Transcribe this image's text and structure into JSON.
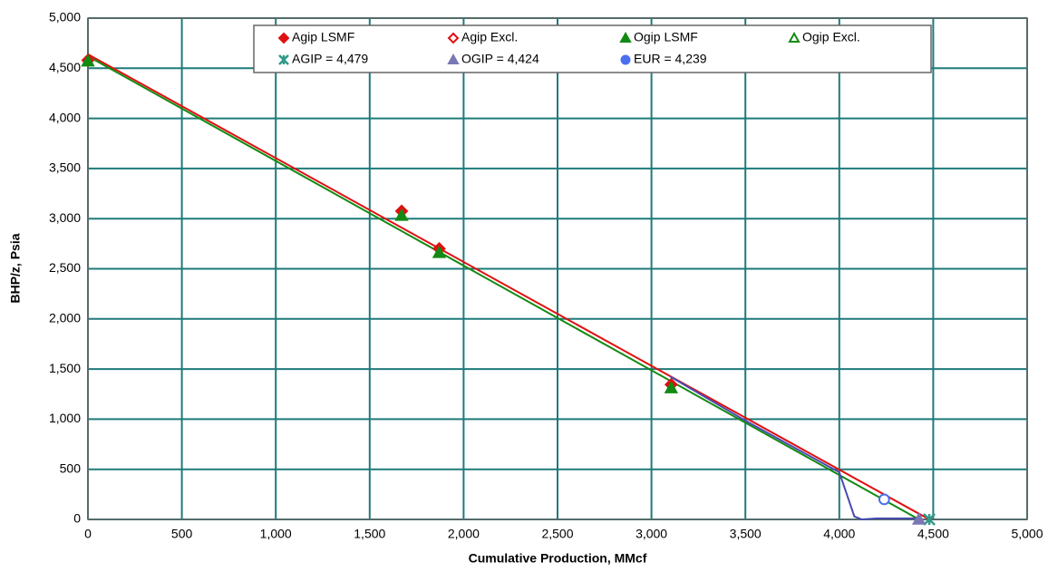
{
  "chart_data": {
    "type": "scatter",
    "x_label": "Cumulative Production, MMcf",
    "y_label": "BHP/z, Psia",
    "xlim": [
      0,
      5000
    ],
    "ylim": [
      0,
      5000
    ],
    "xticks": [
      0,
      500,
      {
        "value": 1000,
        "label": "1,000"
      },
      {
        "value": 1500,
        "label": "1,500"
      },
      {
        "value": 2000,
        "label": "2,000"
      },
      {
        "value": 2500,
        "label": "2,500"
      },
      {
        "value": 3000,
        "label": "3,000"
      },
      {
        "value": 3500,
        "label": "3,500"
      },
      {
        "value": 4000,
        "label": "4,000"
      },
      {
        "value": 4500,
        "label": "4,500"
      },
      {
        "value": 5000,
        "label": "5,000"
      }
    ],
    "yticks": [
      0,
      500,
      {
        "value": 1000,
        "label": "1,000"
      },
      {
        "value": 1500,
        "label": "1,500"
      },
      {
        "value": 2000,
        "label": "2,000"
      },
      {
        "value": 2500,
        "label": "2,500"
      },
      {
        "value": 3000,
        "label": "3,000"
      },
      {
        "value": 3500,
        "label": "3,500"
      },
      {
        "value": 4000,
        "label": "4,000"
      },
      {
        "value": 4500,
        "label": "4,500"
      },
      {
        "value": 5000,
        "label": "5,000"
      }
    ],
    "grid": true,
    "grid_color": "#1f7a7a",
    "legend": "top",
    "series": [
      {
        "name": "Agip LSMF",
        "color": "#e01010",
        "marker": "diamond",
        "x": [
          0,
          1670,
          1870,
          3105
        ],
        "values": [
          4580,
          3075,
          2700,
          1345
        ]
      },
      {
        "name": "Agip Excl.",
        "color": "#e01010",
        "marker": "diamond-open",
        "x": [],
        "values": []
      },
      {
        "name": "Ogip LSMF",
        "color": "#138a13",
        "marker": "triangle",
        "x": [
          0,
          1670,
          1870,
          3105
        ],
        "values": [
          4570,
          3030,
          2660,
          1310
        ]
      },
      {
        "name": "Ogip Excl.",
        "color": "#138a13",
        "marker": "triangle-open",
        "x": [],
        "values": []
      },
      {
        "name": "AGIP = 4,479",
        "color": "#2f9a8a",
        "marker": "asterisk",
        "x": [
          4479
        ],
        "values": [
          0
        ]
      },
      {
        "name": "OGIP = 4,424",
        "color": "#7a78b4",
        "marker": "triangle",
        "x": [
          4424
        ],
        "values": [
          0
        ]
      },
      {
        "name": "EUR = 4,239",
        "color": "#4a6ff0",
        "marker": "circle",
        "point_fill": "#ffffff",
        "x": [
          4239
        ],
        "values": [
          200
        ]
      }
    ],
    "lines": [
      {
        "color": "#e01010",
        "x": [
          0,
          4479
        ],
        "values": [
          4640,
          0
        ]
      },
      {
        "color": "#138a13",
        "x": [
          0,
          4424
        ],
        "values": [
          4620,
          0
        ]
      },
      {
        "color": "#4a4ab0",
        "x": [
          3100,
          3500,
          4000,
          4040,
          4080,
          4120,
          4200,
          4424
        ],
        "values": [
          1425,
          985,
          470,
          250,
          30,
          0,
          10,
          10
        ]
      }
    ]
  }
}
